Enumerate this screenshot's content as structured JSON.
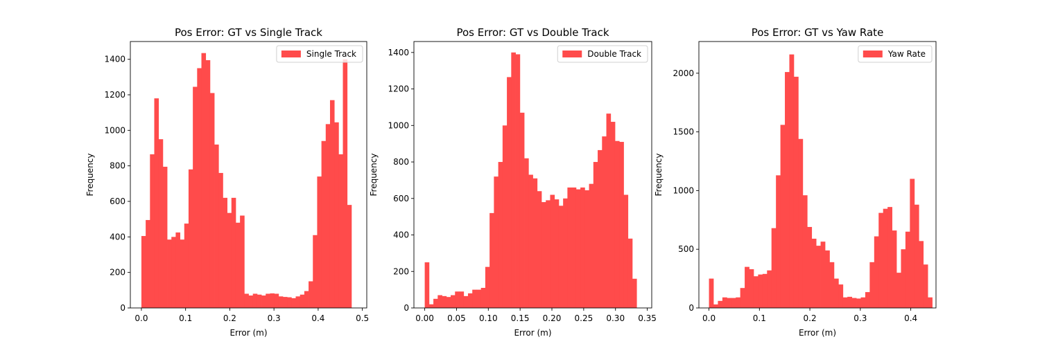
{
  "chart_data": [
    {
      "type": "bar",
      "title": "Pos Error: GT vs Single Track",
      "xlabel": "Error (m)",
      "ylabel": "Frequency",
      "xlim": [
        -0.025,
        0.51
      ],
      "ylim": [
        0,
        1500
      ],
      "xticks": [
        0.0,
        0.1,
        0.2,
        0.3,
        0.4,
        0.5
      ],
      "xtick_labels": [
        "0.0",
        "0.1",
        "0.2",
        "0.3",
        "0.4",
        "0.5"
      ],
      "yticks": [
        0,
        200,
        400,
        600,
        800,
        1000,
        1200,
        1400
      ],
      "ytick_labels": [
        "0",
        "200",
        "400",
        "600",
        "800",
        "1000",
        "1200",
        "1400"
      ],
      "bin_start": 0.0,
      "bin_width": 0.0097,
      "color": "#ff4b4b",
      "legend": {
        "label": "Single Track",
        "position": "top-right"
      },
      "series": [
        {
          "name": "Single Track",
          "values": [
            405,
            495,
            865,
            1180,
            950,
            795,
            385,
            400,
            425,
            385,
            475,
            780,
            1245,
            1350,
            1435,
            1395,
            1210,
            920,
            760,
            620,
            535,
            620,
            480,
            520,
            80,
            70,
            80,
            75,
            70,
            80,
            82,
            80,
            65,
            62,
            60,
            55,
            65,
            75,
            95,
            150,
            410,
            740,
            940,
            1035,
            1170,
            1045,
            865,
            1400,
            580
          ]
        }
      ]
    },
    {
      "type": "bar",
      "title": "Pos Error: GT vs Double Track",
      "xlabel": "Error (m)",
      "ylabel": "Frequency",
      "xlim": [
        -0.017,
        0.357
      ],
      "ylim": [
        0,
        1460
      ],
      "xticks": [
        0.0,
        0.05,
        0.1,
        0.15,
        0.2,
        0.25,
        0.3,
        0.35
      ],
      "xtick_labels": [
        "0.00",
        "0.05",
        "0.10",
        "0.15",
        "0.20",
        "0.25",
        "0.30",
        "0.35"
      ],
      "yticks": [
        0,
        200,
        400,
        600,
        800,
        1000,
        1200,
        1400
      ],
      "ytick_labels": [
        "0",
        "200",
        "400",
        "600",
        "800",
        "1000",
        "1200",
        "1400"
      ],
      "bin_start": 0.0,
      "bin_width": 0.0068,
      "color": "#ff4b4b",
      "legend": {
        "label": "Double Track",
        "position": "top-right"
      },
      "series": [
        {
          "name": "Double Track",
          "values": [
            250,
            20,
            50,
            70,
            65,
            60,
            70,
            90,
            90,
            65,
            80,
            100,
            100,
            110,
            225,
            520,
            720,
            800,
            1000,
            1265,
            1400,
            1390,
            1070,
            820,
            730,
            710,
            640,
            580,
            590,
            620,
            595,
            560,
            600,
            660,
            660,
            650,
            660,
            645,
            680,
            800,
            865,
            940,
            1065,
            1020,
            915,
            910,
            620,
            380,
            160
          ]
        }
      ]
    },
    {
      "type": "bar",
      "title": "Pos Error: GT vs Yaw Rate",
      "xlabel": "Error (m)",
      "ylabel": "Frequency",
      "xlim": [
        -0.02,
        0.45
      ],
      "ylim": [
        0,
        2270
      ],
      "xticks": [
        0.0,
        0.1,
        0.2,
        0.3,
        0.4
      ],
      "xtick_labels": [
        "0.0",
        "0.1",
        "0.2",
        "0.3",
        "0.4"
      ],
      "yticks": [
        0,
        500,
        1000,
        1500,
        2000
      ],
      "ytick_labels": [
        "0",
        "500",
        "1000",
        "1500",
        "2000"
      ],
      "bin_start": 0.0,
      "bin_width": 0.00885,
      "color": "#ff4b4b",
      "legend": {
        "label": "Yaw Rate",
        "position": "top-right"
      },
      "series": [
        {
          "name": "Yaw Rate",
          "values": [
            250,
            30,
            60,
            90,
            85,
            85,
            90,
            170,
            350,
            330,
            270,
            285,
            290,
            320,
            680,
            1130,
            1560,
            2010,
            2160,
            1970,
            1440,
            960,
            690,
            590,
            530,
            565,
            490,
            390,
            250,
            200,
            90,
            95,
            85,
            80,
            90,
            135,
            390,
            610,
            810,
            845,
            860,
            660,
            300,
            500,
            650,
            1100,
            880,
            570,
            370,
            90
          ]
        }
      ]
    }
  ]
}
